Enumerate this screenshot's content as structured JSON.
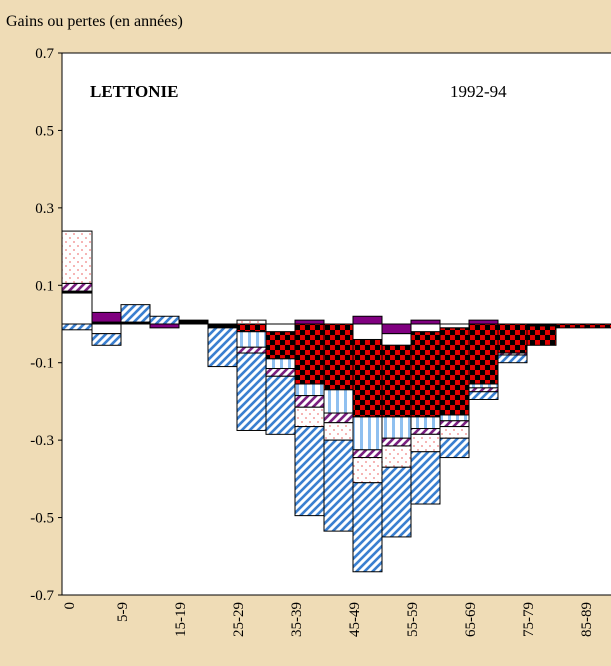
{
  "chart_data": {
    "type": "bar",
    "stacked": true,
    "y_axis_label": "Gains ou pertes (en années)",
    "title": "LETTONIE",
    "subtitle": "1992-94",
    "categories": [
      "0",
      null,
      "5-9",
      null,
      "15-19",
      null,
      "25-29",
      null,
      "35-39",
      null,
      "45-49",
      null,
      "55-59",
      null,
      "65-69",
      null,
      "75-79",
      null,
      "85-89"
    ],
    "ylim": [
      -0.7,
      0.7
    ],
    "yticks": [
      0.7,
      0.5,
      0.3,
      0.1,
      -0.1,
      -0.3,
      -0.5,
      -0.7
    ],
    "series": [
      {
        "color": "#3a7fd0",
        "pattern": "diagonal",
        "values": [
          -0.015,
          -0.03,
          0.045,
          0.02,
          0,
          -0.1,
          -0.2,
          -0.15,
          -0.23,
          -0.235,
          -0.23,
          -0.18,
          -0.135,
          -0.05,
          -0.02,
          -0.02,
          0,
          0,
          0
        ]
      },
      {
        "color": "#8fc0f0",
        "pattern": "vertical",
        "values": [
          0,
          0,
          0,
          0,
          0,
          0,
          -0.04,
          -0.025,
          -0.03,
          -0.06,
          -0.085,
          -0.055,
          -0.03,
          -0.015,
          -0.01,
          0,
          0,
          0,
          0
        ]
      },
      {
        "color": "#f08080",
        "pattern": "dots",
        "values": [
          0.135,
          0,
          0,
          0,
          0,
          0,
          0.01,
          0,
          -0.05,
          -0.045,
          -0.065,
          -0.055,
          -0.045,
          -0.03,
          0,
          0,
          0,
          0,
          0
        ]
      },
      {
        "color": "#7a2080",
        "pattern": "diagonal",
        "values": [
          0.02,
          0,
          0,
          0,
          0,
          0,
          -0.015,
          -0.02,
          -0.03,
          -0.025,
          -0.02,
          -0.02,
          -0.015,
          -0.015,
          -0.01,
          -0.005,
          0,
          0,
          0
        ]
      },
      {
        "color": "#e00000",
        "pattern": "checker",
        "values": [
          0,
          0,
          0,
          0,
          0,
          0,
          -0.02,
          -0.07,
          -0.155,
          -0.17,
          -0.2,
          -0.185,
          -0.22,
          -0.225,
          -0.155,
          -0.075,
          -0.05,
          -0.01,
          -0.01
        ]
      },
      {
        "color": "#ffffff",
        "pattern": "solid",
        "values": [
          0.08,
          -0.025,
          0,
          0,
          0,
          0,
          0,
          -0.02,
          0,
          0,
          -0.04,
          -0.03,
          -0.02,
          -0.01,
          0,
          0,
          0,
          0,
          0
        ]
      },
      {
        "color": "#800080",
        "pattern": "solid",
        "values": [
          0,
          0.025,
          0,
          -0.01,
          0,
          0,
          0,
          0,
          0.01,
          0,
          0.02,
          -0.025,
          0.01,
          0,
          0.01,
          0,
          0,
          0,
          0
        ]
      },
      {
        "color": "#000000",
        "pattern": "solid",
        "values": [
          0.005,
          0.005,
          0.005,
          0,
          0.01,
          -0.01,
          0,
          0,
          0,
          0,
          0,
          0,
          0,
          0,
          0,
          0,
          -0.005,
          0,
          0
        ]
      }
    ]
  }
}
